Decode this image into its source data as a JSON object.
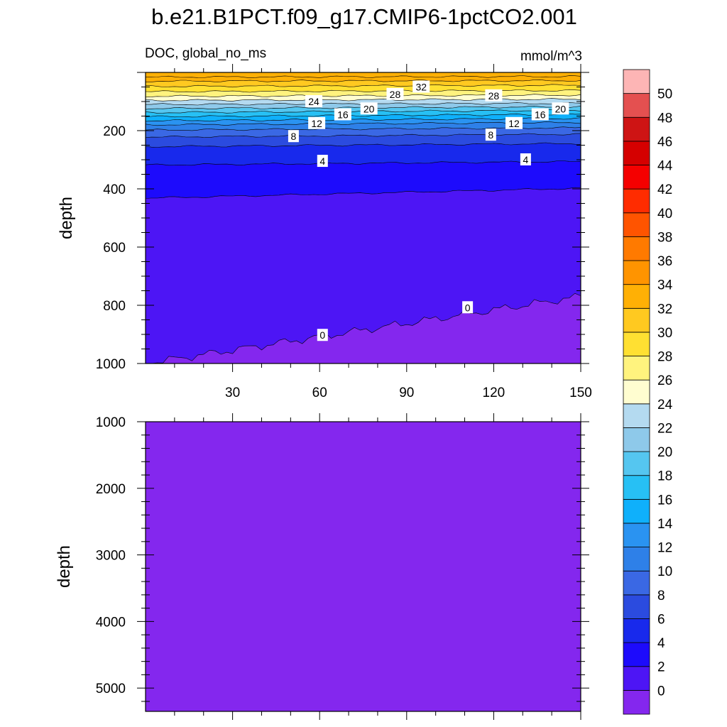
{
  "title": "b.e21.B1PCT.f09_g17.CMIP6-1pctCO2.001",
  "chart_data": {
    "type": "contour",
    "variable": "DOC, global_no_ms",
    "units": "mmol/m^3",
    "x_range": [
      0,
      150
    ],
    "colorbar": {
      "labels": [
        "0",
        "2",
        "4",
        "6",
        "8",
        "10",
        "12",
        "14",
        "16",
        "18",
        "20",
        "22",
        "24",
        "26",
        "28",
        "30",
        "32",
        "34",
        "36",
        "38",
        "40",
        "42",
        "44",
        "46",
        "48",
        "50"
      ],
      "colors": [
        "#8427EE",
        "#4D15F5",
        "#1D0BFC",
        "#1829EC",
        "#2B4BDF",
        "#3A68E4",
        "#2E80E8",
        "#2A93F1",
        "#0FB0FB",
        "#27C0F4",
        "#55C6F0",
        "#8EC9EA",
        "#B4DAF0",
        "#FFFDD0",
        "#FFF37E",
        "#FFE032",
        "#FFC920",
        "#FFB005",
        "#FF9400",
        "#FF7A00",
        "#FF5400",
        "#FF2C00",
        "#F50000",
        "#D50000",
        "#CE1414",
        "#E45050",
        "#FDB5B5"
      ]
    },
    "panels": [
      {
        "name": "upper",
        "ylabel": "depth",
        "y_range": [
          0,
          1000
        ],
        "y_ticks": [
          200,
          400,
          600,
          800,
          1000
        ],
        "x_ticks": [
          30,
          60,
          90,
          120,
          150
        ],
        "contour_labels": [
          {
            "text": "32",
            "x": 95,
            "depth": 50
          },
          {
            "text": "28",
            "x": 86,
            "depth": 75
          },
          {
            "text": "28",
            "x": 120,
            "depth": 80
          },
          {
            "text": "24",
            "x": 58,
            "depth": 100
          },
          {
            "text": "20",
            "x": 77,
            "depth": 125
          },
          {
            "text": "20",
            "x": 143,
            "depth": 125
          },
          {
            "text": "16",
            "x": 68,
            "depth": 145
          },
          {
            "text": "16",
            "x": 136,
            "depth": 145
          },
          {
            "text": "12",
            "x": 59,
            "depth": 175
          },
          {
            "text": "12",
            "x": 127,
            "depth": 175
          },
          {
            "text": "8",
            "x": 51,
            "depth": 220
          },
          {
            "text": "8",
            "x": 119,
            "depth": 215
          },
          {
            "text": "4",
            "x": 61,
            "depth": 305
          },
          {
            "text": "4",
            "x": 131,
            "depth": 300
          },
          {
            "text": "0",
            "x": 61,
            "depth": 903
          },
          {
            "text": "0",
            "x": 111,
            "depth": 808
          }
        ]
      },
      {
        "name": "lower",
        "ylabel": "depth",
        "y_range": [
          1000,
          5350
        ],
        "y_ticks": [
          1000,
          2000,
          3000,
          4000,
          5000
        ],
        "fill_level": "0"
      }
    ]
  }
}
